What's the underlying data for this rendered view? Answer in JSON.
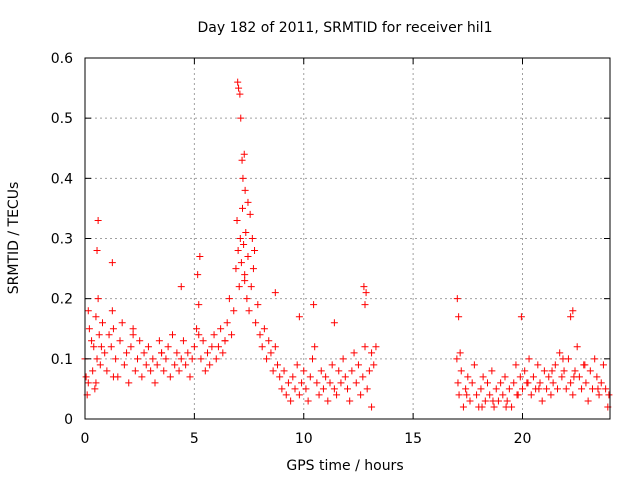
{
  "chart_data": {
    "type": "scatter",
    "title": "Day 182 of 2011, SRMTID for receiver hil1",
    "xlabel": "GPS time / hours",
    "ylabel": "SRMTID / TECUs",
    "xlim": [
      0,
      24
    ],
    "ylim": [
      0,
      0.6
    ],
    "xticks": [
      0,
      5,
      10,
      15,
      20
    ],
    "xtick_labels": [
      "0",
      "5",
      "10",
      "15",
      "20"
    ],
    "yticks": [
      0,
      0.1,
      0.2,
      0.3,
      0.4,
      0.5,
      0.6
    ],
    "ytick_labels": [
      "0",
      "0.1",
      "0.2",
      "0.3",
      "0.4",
      "0.5",
      "0.6"
    ],
    "grid": true,
    "marker": "plus",
    "color": "#ff0000",
    "series": [
      {
        "name": "hil1",
        "x": [
          0.0,
          0.05,
          0.1,
          0.15,
          0.2,
          0.3,
          0.35,
          0.4,
          0.45,
          0.5,
          0.55,
          0.6,
          0.65,
          0.7,
          0.75,
          0.8,
          0.9,
          1.0,
          1.1,
          1.2,
          1.25,
          1.3,
          1.4,
          1.5,
          1.6,
          1.7,
          1.8,
          1.9,
          2.0,
          2.1,
          2.2,
          2.3,
          2.4,
          2.5,
          2.6,
          2.7,
          2.8,
          2.9,
          3.0,
          3.1,
          3.2,
          3.3,
          3.4,
          3.5,
          3.6,
          3.7,
          3.8,
          3.9,
          4.0,
          4.1,
          4.2,
          4.3,
          4.4,
          4.5,
          4.6,
          4.7,
          4.8,
          4.9,
          5.0,
          5.1,
          5.2,
          5.3,
          5.4,
          5.5,
          5.6,
          5.7,
          5.8,
          5.9,
          6.0,
          6.1,
          6.2,
          6.3,
          6.4,
          6.5,
          6.6,
          6.7,
          6.8,
          6.9,
          6.95,
          7.0,
          7.05,
          7.1,
          7.15,
          7.2,
          7.25,
          7.3,
          7.35,
          7.4,
          7.45,
          7.5,
          7.6,
          7.7,
          7.8,
          7.9,
          8.0,
          8.1,
          8.2,
          8.3,
          8.4,
          8.5,
          8.6,
          8.7,
          8.8,
          8.9,
          9.0,
          9.1,
          9.2,
          9.3,
          9.4,
          9.5,
          9.6,
          9.7,
          9.8,
          9.9,
          10.0,
          10.1,
          10.2,
          10.3,
          10.4,
          10.5,
          10.6,
          10.7,
          10.8,
          10.9,
          11.0,
          11.1,
          11.2,
          11.3,
          11.4,
          11.5,
          11.6,
          11.7,
          11.8,
          11.9,
          12.0,
          12.1,
          12.2,
          12.3,
          12.4,
          12.5,
          12.6,
          12.7,
          12.8,
          12.9,
          13.0,
          13.1,
          13.2,
          13.3,
          0.15,
          0.5,
          1.3,
          2.2,
          3.5,
          4.4,
          5.2,
          6.4,
          7.3,
          8.7,
          9.8,
          11.4,
          12.8,
          13.1,
          17.0,
          17.05,
          17.1,
          17.2,
          17.3,
          17.4,
          17.5,
          17.6,
          17.7,
          17.8,
          17.9,
          18.0,
          18.1,
          18.2,
          18.3,
          18.4,
          18.5,
          18.6,
          18.7,
          18.8,
          18.9,
          19.0,
          19.1,
          19.2,
          19.3,
          19.4,
          19.5,
          19.6,
          19.7,
          19.8,
          19.9,
          20.0,
          20.1,
          20.2,
          20.3,
          20.4,
          20.5,
          20.6,
          20.7,
          20.8,
          20.9,
          21.0,
          21.1,
          21.2,
          21.3,
          21.4,
          21.5,
          21.6,
          21.7,
          21.8,
          21.9,
          22.0,
          22.1,
          22.2,
          22.3,
          22.4,
          22.5,
          22.6,
          22.7,
          22.8,
          22.9,
          23.0,
          23.1,
          23.2,
          23.3,
          23.4,
          23.5,
          23.6,
          23.7,
          23.8,
          23.9,
          17.15,
          17.45,
          18.15,
          18.65,
          19.25,
          19.75,
          20.25,
          20.75,
          21.35,
          21.85,
          22.35,
          22.85,
          23.45,
          23.95,
          0.55,
          0.6,
          1.25,
          5.15,
          5.25,
          6.98,
          7.02,
          7.08,
          7.12,
          7.18,
          7.22,
          7.28,
          7.32,
          7.45,
          7.55,
          7.65,
          7.75,
          17.02,
          17.08,
          22.2,
          22.3,
          19.95,
          10.45,
          12.75,
          12.85
        ],
        "y": [
          0.1,
          0.07,
          0.04,
          0.06,
          0.15,
          0.13,
          0.08,
          0.12,
          0.05,
          0.17,
          0.1,
          0.2,
          0.14,
          0.09,
          0.12,
          0.16,
          0.11,
          0.08,
          0.14,
          0.12,
          0.18,
          0.15,
          0.1,
          0.07,
          0.13,
          0.16,
          0.09,
          0.11,
          0.06,
          0.12,
          0.14,
          0.08,
          0.1,
          0.13,
          0.07,
          0.11,
          0.09,
          0.12,
          0.08,
          0.1,
          0.06,
          0.09,
          0.13,
          0.11,
          0.08,
          0.1,
          0.12,
          0.07,
          0.14,
          0.09,
          0.11,
          0.08,
          0.1,
          0.13,
          0.09,
          0.11,
          0.07,
          0.1,
          0.12,
          0.15,
          0.19,
          0.1,
          0.13,
          0.08,
          0.11,
          0.09,
          0.12,
          0.14,
          0.1,
          0.12,
          0.15,
          0.11,
          0.13,
          0.16,
          0.2,
          0.14,
          0.18,
          0.25,
          0.33,
          0.28,
          0.22,
          0.3,
          0.26,
          0.35,
          0.29,
          0.24,
          0.31,
          0.2,
          0.27,
          0.18,
          0.22,
          0.25,
          0.16,
          0.19,
          0.14,
          0.12,
          0.15,
          0.1,
          0.13,
          0.11,
          0.08,
          0.12,
          0.09,
          0.07,
          0.05,
          0.08,
          0.04,
          0.06,
          0.03,
          0.07,
          0.05,
          0.09,
          0.04,
          0.06,
          0.08,
          0.05,
          0.03,
          0.07,
          0.1,
          0.12,
          0.06,
          0.04,
          0.08,
          0.05,
          0.07,
          0.03,
          0.06,
          0.09,
          0.05,
          0.04,
          0.08,
          0.06,
          0.1,
          0.07,
          0.05,
          0.03,
          0.08,
          0.11,
          0.06,
          0.09,
          0.04,
          0.07,
          0.12,
          0.05,
          0.08,
          0.02,
          0.09,
          0.12,
          0.18,
          0.06,
          0.07,
          0.15,
          0.11,
          0.22,
          0.14,
          0.13,
          0.23,
          0.21,
          0.17,
          0.16,
          0.19,
          0.11,
          0.1,
          0.06,
          0.04,
          0.08,
          0.02,
          0.05,
          0.07,
          0.03,
          0.06,
          0.09,
          0.04,
          0.02,
          0.05,
          0.07,
          0.03,
          0.06,
          0.04,
          0.08,
          0.02,
          0.05,
          0.03,
          0.06,
          0.04,
          0.07,
          0.03,
          0.05,
          0.02,
          0.06,
          0.09,
          0.04,
          0.07,
          0.05,
          0.08,
          0.06,
          0.1,
          0.04,
          0.07,
          0.05,
          0.09,
          0.06,
          0.03,
          0.08,
          0.05,
          0.07,
          0.04,
          0.06,
          0.09,
          0.05,
          0.11,
          0.07,
          0.08,
          0.05,
          0.1,
          0.06,
          0.04,
          0.08,
          0.12,
          0.07,
          0.05,
          0.09,
          0.06,
          0.03,
          0.08,
          0.05,
          0.1,
          0.07,
          0.04,
          0.06,
          0.09,
          0.05,
          0.02,
          0.11,
          0.04,
          0.02,
          0.03,
          0.02,
          0.04,
          0.06,
          0.05,
          0.08,
          0.1,
          0.07,
          0.09,
          0.05,
          0.04,
          0.28,
          0.33,
          0.26,
          0.24,
          0.27,
          0.56,
          0.55,
          0.54,
          0.5,
          0.43,
          0.4,
          0.44,
          0.38,
          0.36,
          0.34,
          0.3,
          0.28,
          0.2,
          0.17,
          0.17,
          0.18,
          0.17,
          0.19,
          0.22,
          0.21
        ]
      }
    ]
  }
}
